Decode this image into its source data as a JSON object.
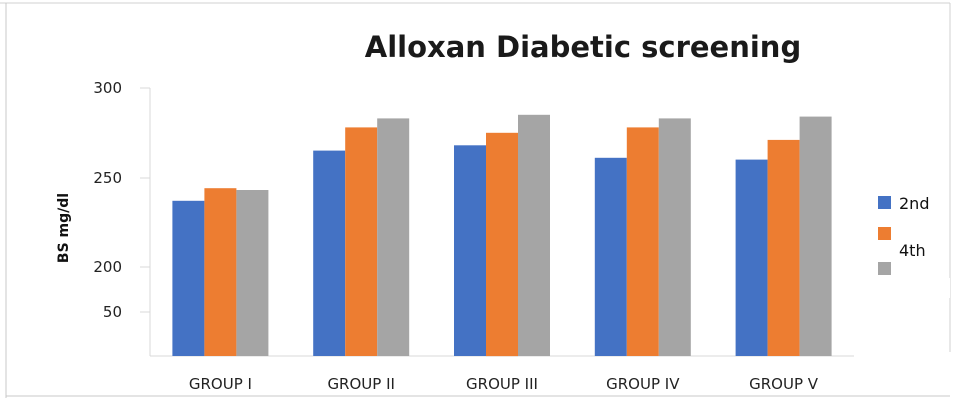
{
  "chart_data": {
    "type": "bar",
    "title": "Alloxan Diabetic screening",
    "ylabel": "BS mg/dl",
    "xlabel": "",
    "categories": [
      "GROUP I",
      "GROUP II",
      "GROUP III",
      "GROUP IV",
      "GROUP V"
    ],
    "y_ticks": [
      "300",
      "250",
      "200",
      "50"
    ],
    "series": [
      {
        "name": "2nd",
        "color": "#4472c4",
        "values": [
          237,
          265,
          268,
          261,
          260
        ]
      },
      {
        "name": "4th",
        "color": "#ed7d31",
        "values": [
          244,
          278,
          275,
          278,
          271
        ]
      },
      {
        "name": "",
        "color": "#a5a5a5",
        "values": [
          243,
          283,
          285,
          283,
          284
        ]
      }
    ],
    "legend_placement": "right",
    "grid": false
  }
}
